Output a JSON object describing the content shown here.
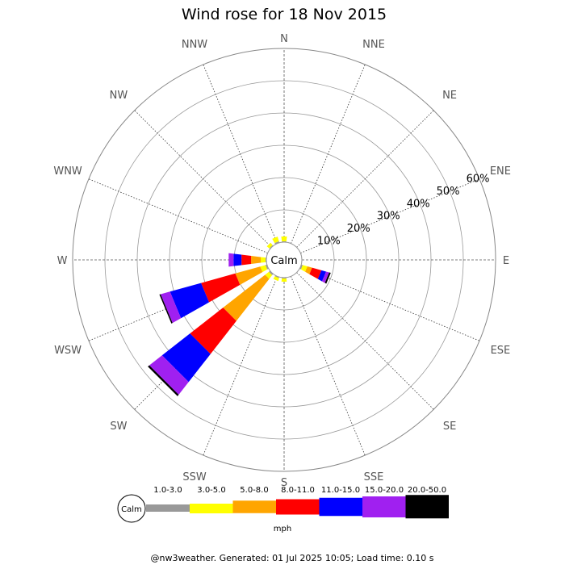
{
  "chart_data": {
    "type": "wind-rose",
    "title": "Wind rose for 18 Nov 2015",
    "directions": [
      "N",
      "NNE",
      "NE",
      "ENE",
      "E",
      "ESE",
      "SE",
      "SSE",
      "S",
      "SSW",
      "SW",
      "WSW",
      "W",
      "WNW",
      "NW",
      "NNW"
    ],
    "radial_ticks": [
      "10%",
      "20%",
      "30%",
      "40%",
      "50%",
      "60%"
    ],
    "radial_max": 60,
    "radial_label_direction": "ENE",
    "calm_label": "Calm",
    "unit": "mph",
    "speed_bins": [
      {
        "label": "",
        "color": "#999999"
      },
      {
        "label": "1.0-3.0",
        "color": "#ffff00"
      },
      {
        "label": "3.0-5.0",
        "color": "#ffa500"
      },
      {
        "label": "5.0-8.0",
        "color": "#ff0000"
      },
      {
        "label": "8.0-11.0",
        "color": "#0000ff"
      },
      {
        "label": "11.0-15.0",
        "color": "#a020f0"
      },
      {
        "label": "15.0-20.0",
        "color": "#000000"
      },
      {
        "label": "20.0-50.0",
        "color": ""
      }
    ],
    "series": [
      {
        "direction": "N",
        "values": [
          0.3,
          1.5,
          0,
          0,
          0,
          0,
          0
        ]
      },
      {
        "direction": "NNW",
        "values": [
          0.5,
          1.5,
          0,
          0,
          0,
          0,
          0
        ]
      },
      {
        "direction": "NW",
        "values": [
          0.3,
          1.0,
          0,
          0,
          0,
          0,
          0
        ]
      },
      {
        "direction": "W",
        "values": [
          0.3,
          1.5,
          3.0,
          3.0,
          2.5,
          1.5,
          0
        ]
      },
      {
        "direction": "WSW",
        "values": [
          0.5,
          1.7,
          8.0,
          11.0,
          10.0,
          3.0,
          0.4
        ]
      },
      {
        "direction": "SW",
        "values": [
          0.5,
          1.5,
          16.5,
          13.0,
          11.0,
          5.0,
          0.6
        ]
      },
      {
        "direction": "SSW",
        "values": [
          0.3,
          1.0,
          0,
          0,
          0,
          0,
          0
        ]
      },
      {
        "direction": "S",
        "values": [
          0.3,
          1.0,
          0,
          0,
          0,
          0,
          0
        ]
      },
      {
        "direction": "ESE",
        "values": [
          0.5,
          1.5,
          1.5,
          3.0,
          1.5,
          1.0,
          0.5
        ]
      }
    ]
  },
  "footer": "@nw3weather. Generated: 01 Jul 2025 10:05; Load time: 0.10 s"
}
